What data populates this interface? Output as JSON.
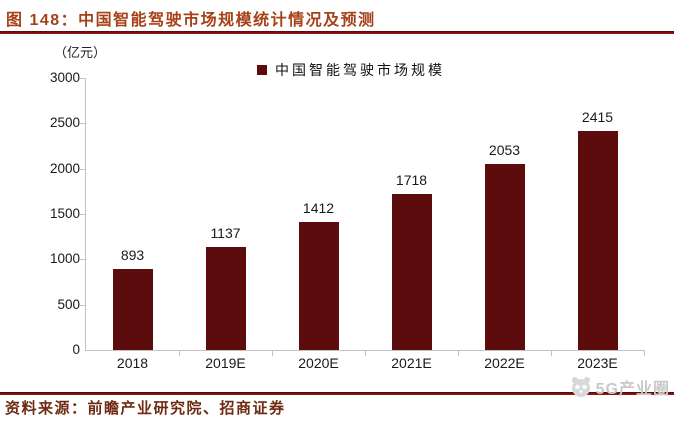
{
  "figure": {
    "title": "图 148：中国智能驾驶市场规模统计情况及预测",
    "unit_label": "（亿元）",
    "source_note": "资料来源：前瞻产业研究院、招商证券",
    "watermark_text": "5G产业圈"
  },
  "colors": {
    "bar": "#5C0C0C",
    "accent_rule": "#8B1010",
    "title_text": "#A64119",
    "source_text": "#6F2B12",
    "axis_line": "#C2C2C2",
    "watermark": "#C9C9C9"
  },
  "chart_data": {
    "type": "bar",
    "title": "",
    "xlabel": "",
    "ylabel": "（亿元）",
    "categories": [
      "2018",
      "2019E",
      "2020E",
      "2021E",
      "2022E",
      "2023E"
    ],
    "values": [
      893,
      1137,
      1412,
      1718,
      2053,
      2415
    ],
    "series_name": "中国智能驾驶市场规模",
    "legend_entries": [
      "中国智能驾驶市场规模"
    ],
    "legend_position": "top-center",
    "ylim": [
      0,
      3000
    ],
    "yticks": [
      0,
      500,
      1000,
      1500,
      2000,
      2500,
      3000
    ],
    "grid": false,
    "data_labels": true
  }
}
